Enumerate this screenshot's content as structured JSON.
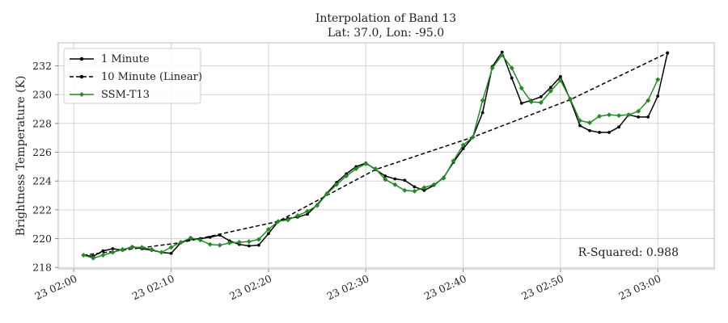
{
  "chart_data": {
    "type": "line",
    "title": "Interpolation of Band 13",
    "subtitle": "Lat: 37.0, Lon: -95.0",
    "xlabel": "",
    "ylabel": "Brightness Temperature (K)",
    "xlim": [
      -1.6,
      65.8
    ],
    "ylim": [
      217.9,
      233.6
    ],
    "grid": true,
    "legend_position": "upper-left",
    "x_ticks": [
      0,
      10,
      20,
      30,
      40,
      50,
      60
    ],
    "x_tick_labels": [
      "23 02:00",
      "23 02:10",
      "23 02:20",
      "23 02:30",
      "23 02:40",
      "23 02:50",
      "23 03:00"
    ],
    "y_ticks": [
      218,
      220,
      222,
      224,
      226,
      228,
      230,
      232
    ],
    "y_tick_labels": [
      "218",
      "220",
      "222",
      "224",
      "226",
      "228",
      "230",
      "232"
    ],
    "annotation": "R-Squared:  0.988",
    "series": [
      {
        "name": "1 Minute",
        "style": "solid",
        "marker": "circle",
        "color": "#000000",
        "x": [
          1,
          2,
          3,
          4,
          5,
          6,
          7,
          8,
          9,
          10,
          11,
          12,
          13,
          14,
          15,
          16,
          17,
          18,
          19,
          20,
          21,
          22,
          23,
          24,
          25,
          26,
          27,
          28,
          29,
          30,
          31,
          32,
          33,
          34,
          35,
          36,
          37,
          38,
          39,
          40,
          41,
          42,
          43,
          44,
          45,
          46,
          47,
          48,
          49,
          50,
          51,
          52,
          53,
          54,
          55,
          56,
          57,
          58,
          59,
          60,
          61
        ],
        "y": [
          218.85,
          218.78,
          219.15,
          219.3,
          219.2,
          219.45,
          219.3,
          219.2,
          219.05,
          218.98,
          219.72,
          219.98,
          220.0,
          220.1,
          220.25,
          219.85,
          219.6,
          219.5,
          219.55,
          220.35,
          221.2,
          221.4,
          221.5,
          221.7,
          222.35,
          223.15,
          223.9,
          224.5,
          225.0,
          225.25,
          224.8,
          224.35,
          224.15,
          224.05,
          223.6,
          223.35,
          223.7,
          224.25,
          225.3,
          226.25,
          227.05,
          228.75,
          231.95,
          232.95,
          231.15,
          229.4,
          229.6,
          229.85,
          230.5,
          231.25,
          229.65,
          227.85,
          227.5,
          227.38,
          227.38,
          227.75,
          228.6,
          228.45,
          228.45,
          229.9,
          232.9
        ]
      },
      {
        "name": "10 Minute (Linear)",
        "style": "dashed",
        "marker": "circle",
        "color": "#000000",
        "x": [
          1,
          11,
          21,
          31,
          41,
          51,
          61
        ],
        "y": [
          218.85,
          219.72,
          221.2,
          224.8,
          227.05,
          229.65,
          232.9
        ]
      },
      {
        "name": "SSM-T13",
        "style": "solid",
        "marker": "diamond",
        "color": "#228b22",
        "x": [
          1,
          2,
          3,
          4,
          5,
          6,
          7,
          8,
          9,
          10,
          11,
          12,
          13,
          14,
          15,
          16,
          17,
          18,
          19,
          20,
          21,
          22,
          23,
          24,
          25,
          26,
          27,
          28,
          29,
          30,
          31,
          32,
          33,
          34,
          35,
          36,
          37,
          38,
          39,
          40,
          41,
          42,
          43,
          44,
          45,
          46,
          47,
          48,
          49,
          50,
          51,
          52,
          53,
          54,
          55,
          56,
          57,
          58,
          59,
          60,
          61
        ],
        "y": [
          218.85,
          218.65,
          218.85,
          219.05,
          219.25,
          219.4,
          219.4,
          219.25,
          219.05,
          219.4,
          219.75,
          220.05,
          219.9,
          219.6,
          219.55,
          219.7,
          219.75,
          219.8,
          219.95,
          220.65,
          221.2,
          221.3,
          221.6,
          221.9,
          222.3,
          223.1,
          223.75,
          224.35,
          224.85,
          225.2,
          224.85,
          224.1,
          223.75,
          223.35,
          223.3,
          223.55,
          223.75,
          224.2,
          225.4,
          226.5,
          227.05,
          229.6,
          231.85,
          232.75,
          231.85,
          230.45,
          229.5,
          229.45,
          230.25,
          231.0,
          229.7,
          228.2,
          228.05,
          228.5,
          228.6,
          228.55,
          228.6,
          228.85,
          229.6,
          231.05,
          null
        ]
      }
    ]
  }
}
